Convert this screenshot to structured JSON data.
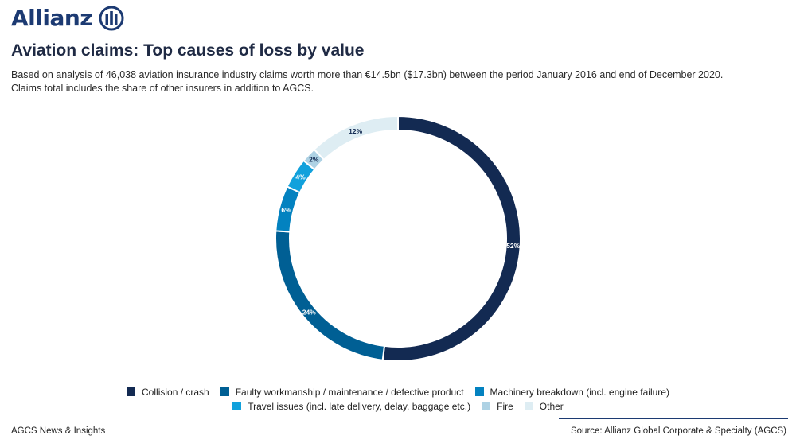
{
  "brand": {
    "name": "Allianz",
    "logo_icon": "allianz-eagle-icon",
    "color": "#1c3a72"
  },
  "title": "Aviation claims: Top causes of loss by value",
  "subtitle_lines": [
    "Based on analysis of 46,038 aviation insurance industry claims worth more than €14.5bn ($17.3bn) between the period January 2016 and end of December 2020.",
    "Claims total includes the share of other insurers in addition to AGCS."
  ],
  "chart_data": {
    "type": "pie",
    "donut": true,
    "title": "Aviation claims: Top causes of loss by value",
    "legend_position": "bottom",
    "slices": [
      {
        "label": "Collision / crash",
        "value": 52,
        "data_label": "52%",
        "color": "#132a52"
      },
      {
        "label": "Faulty workmanship / maintenance / defective product",
        "value": 24,
        "data_label": "24%",
        "color": "#005f94"
      },
      {
        "label": "Machinery breakdown (incl. engine failure)",
        "value": 6,
        "data_label": "6%",
        "color": "#0382c0"
      },
      {
        "label": "Travel issues (incl. late delivery, delay, baggage etc.)",
        "value": 4,
        "data_label": "4%",
        "color": "#11a1dc"
      },
      {
        "label": "Fire",
        "value": 2,
        "data_label": "2%",
        "color": "#aed2e4"
      },
      {
        "label": "Other",
        "value": 12,
        "data_label": "12%",
        "color": "#deedf3"
      }
    ]
  },
  "footer": {
    "left": "AGCS News & Insights",
    "right": "Source: Allianz Global Corporate & Specialty (AGCS)"
  }
}
